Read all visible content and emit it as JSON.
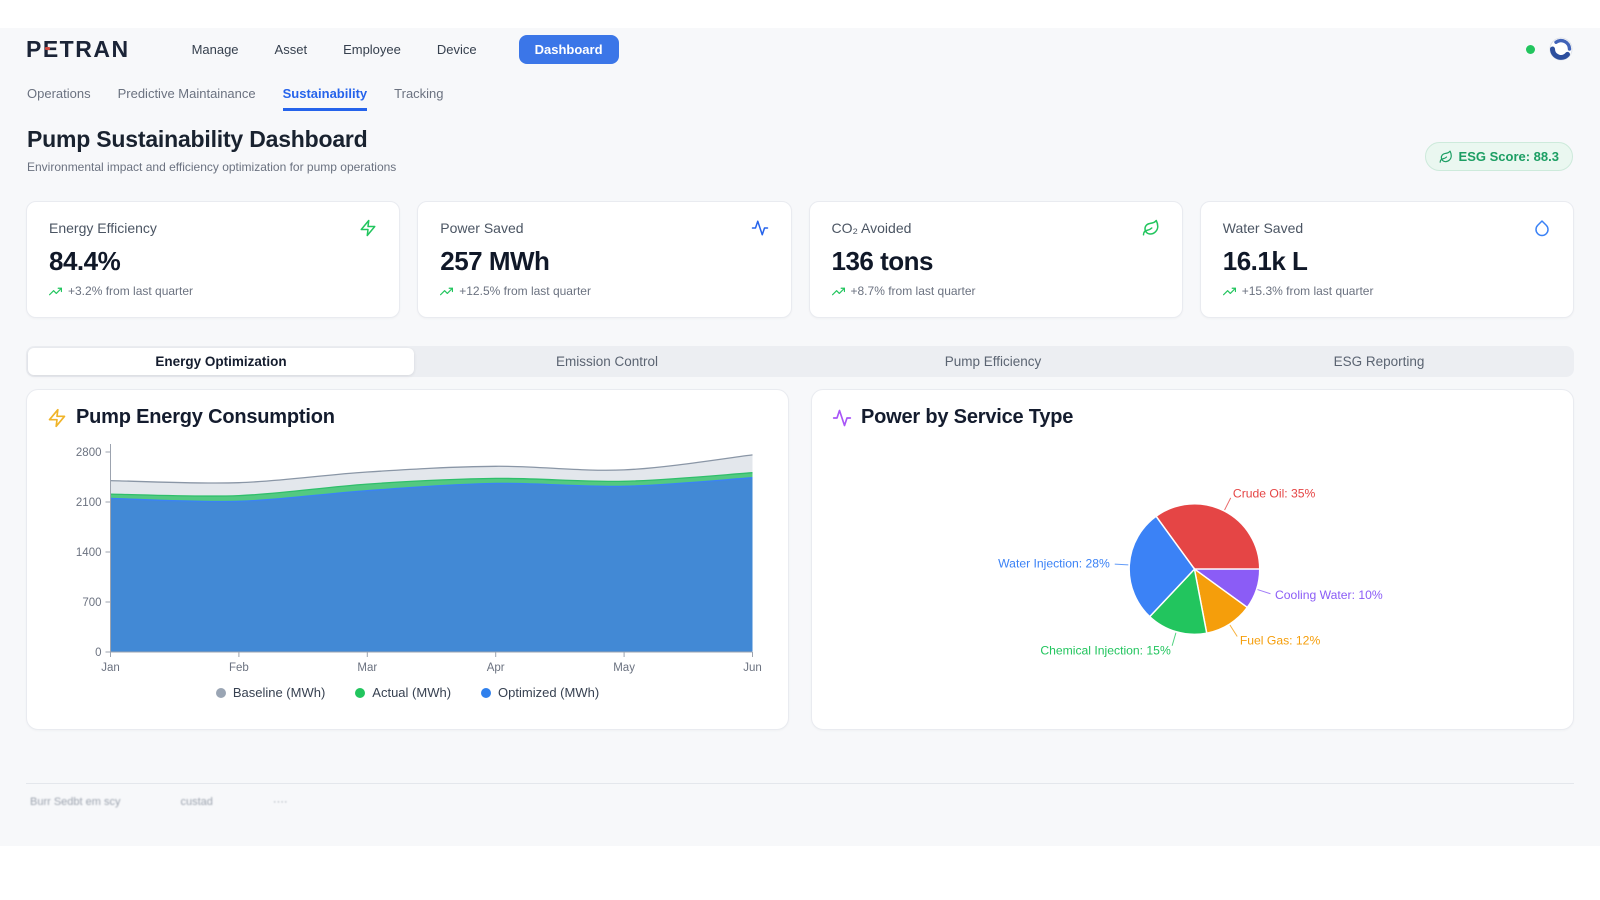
{
  "brand": {
    "logo_text": "PETRAN"
  },
  "nav": {
    "items": [
      {
        "label": "Manage"
      },
      {
        "label": "Asset"
      },
      {
        "label": "Employee"
      },
      {
        "label": "Device"
      }
    ],
    "active_button": "Dashboard"
  },
  "subnav": {
    "items": [
      "Operations",
      "Predictive Maintainance",
      "Sustainability",
      "Tracking"
    ],
    "active": "Sustainability"
  },
  "page": {
    "title": "Pump Sustainability Dashboard",
    "subtitle": "Environmental impact and efficiency optimization for pump operations",
    "esg_badge": "ESG Score: 88.3"
  },
  "stats": [
    {
      "label": "Energy Efficiency",
      "value": "84.4%",
      "trend": "+3.2% from last quarter",
      "icon": "zap-icon",
      "icon_color": "#22c55e"
    },
    {
      "label": "Power Saved",
      "value": "257 MWh",
      "trend": "+12.5% from last quarter",
      "icon": "activity-icon",
      "icon_color": "#2563eb"
    },
    {
      "label": "CO₂ Avoided",
      "value": "136 tons",
      "trend": "+8.7% from last quarter",
      "icon": "leaf-icon",
      "icon_color": "#22c55e"
    },
    {
      "label": "Water Saved",
      "value": "16.1k L",
      "trend": "+15.3% from last quarter",
      "icon": "droplet-icon",
      "icon_color": "#3b82f6"
    }
  ],
  "tabs": {
    "items": [
      "Energy Optimization",
      "Emission Control",
      "Pump Efficiency",
      "ESG Reporting"
    ],
    "active": "Energy Optimization"
  },
  "footer": {
    "items": [
      "Burr Sedbt em scy",
      "custad",
      "····"
    ]
  },
  "chart_data": [
    {
      "type": "area",
      "title": "Pump Energy Consumption",
      "x": [
        "Jan",
        "Feb",
        "Mar",
        "Apr",
        "May",
        "Jun"
      ],
      "xlabel": "",
      "ylabel": "",
      "ylim": [
        0,
        2800
      ],
      "yticks": [
        0,
        700,
        1400,
        2100,
        2800
      ],
      "grid": false,
      "legend_position": "bottom",
      "series": [
        {
          "name": "Baseline (MWh)",
          "values": [
            2400,
            2370,
            2520,
            2600,
            2550,
            2760
          ],
          "stroke": "#8a96a6",
          "fill": "#e3e7ec",
          "dot": "#9aa5b4"
        },
        {
          "name": "Actual (MWh)",
          "values": [
            2210,
            2190,
            2350,
            2430,
            2390,
            2510
          ],
          "stroke": "#2fbf6b",
          "fill": "#53c981",
          "dot": "#22c55e"
        },
        {
          "name": "Optimized (MWh)",
          "values": [
            2150,
            2110,
            2260,
            2360,
            2320,
            2440
          ],
          "stroke": "#3b82f6",
          "fill": "#4289d5",
          "dot": "#2f80ed"
        }
      ]
    },
    {
      "type": "pie",
      "title": "Power by Service Type",
      "start_angle_deg": -36,
      "slices": [
        {
          "name": "Crude Oil",
          "value": 35,
          "color": "#e54545"
        },
        {
          "name": "Cooling Water",
          "value": 10,
          "color": "#8b5cf6"
        },
        {
          "name": "Fuel Gas",
          "value": 12,
          "color": "#f59e0b"
        },
        {
          "name": "Chemical Injection",
          "value": 15,
          "color": "#22c55e"
        },
        {
          "name": "Water Injection",
          "value": 28,
          "color": "#3b82f6"
        }
      ]
    }
  ]
}
